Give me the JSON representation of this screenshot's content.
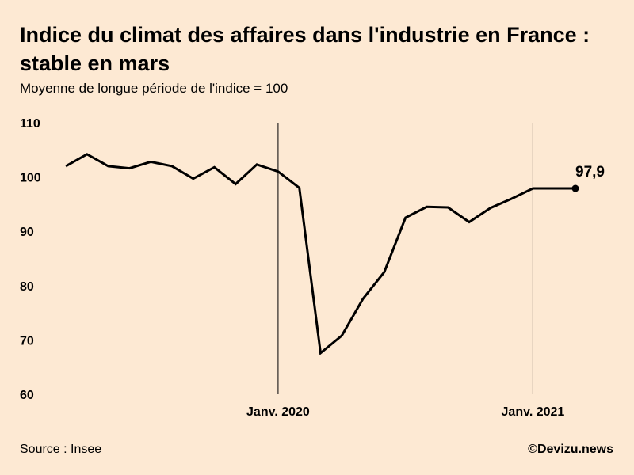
{
  "title": "Indice du climat des affaires dans l'industrie en France : stable en mars",
  "subtitle": "Moyenne de longue période de l'indice = 100",
  "source": "Source : Insee",
  "credit": "©Devizu.news",
  "colors": {
    "background": "#fde9d3",
    "line": "#000000"
  },
  "chart_data": {
    "type": "line",
    "title": "Indice du climat des affaires dans l'industrie en France : stable en mars",
    "subtitle": "Moyenne de longue période de l'indice = 100",
    "xlabel": "",
    "ylabel": "",
    "ylim": [
      60,
      110
    ],
    "yticks": [
      110,
      100,
      90,
      80,
      70,
      60
    ],
    "grid": false,
    "x": [
      "2019-03",
      "2019-04",
      "2019-05",
      "2019-06",
      "2019-07",
      "2019-08",
      "2019-09",
      "2019-10",
      "2019-11",
      "2019-12",
      "2020-01",
      "2020-02",
      "2020-03",
      "2020-04",
      "2020-05",
      "2020-06",
      "2020-07",
      "2020-08",
      "2020-09",
      "2020-10",
      "2020-11",
      "2020-12",
      "2021-01",
      "2021-02",
      "2021-03"
    ],
    "series": [
      {
        "values": [
          102.0,
          104.2,
          102.0,
          101.6,
          102.8,
          102.0,
          99.7,
          101.8,
          98.7,
          102.3,
          101.0,
          98.0,
          67.6,
          70.8,
          77.6,
          82.5,
          92.5,
          94.5,
          94.4,
          91.7,
          94.3,
          96.0,
          97.9,
          97.9,
          97.9
        ]
      }
    ],
    "x_ticks": [
      {
        "x": "2020-01",
        "label": "Janv. 2020"
      },
      {
        "x": "2021-01",
        "label": "Janv. 2021"
      }
    ],
    "end_label": "97,9"
  }
}
